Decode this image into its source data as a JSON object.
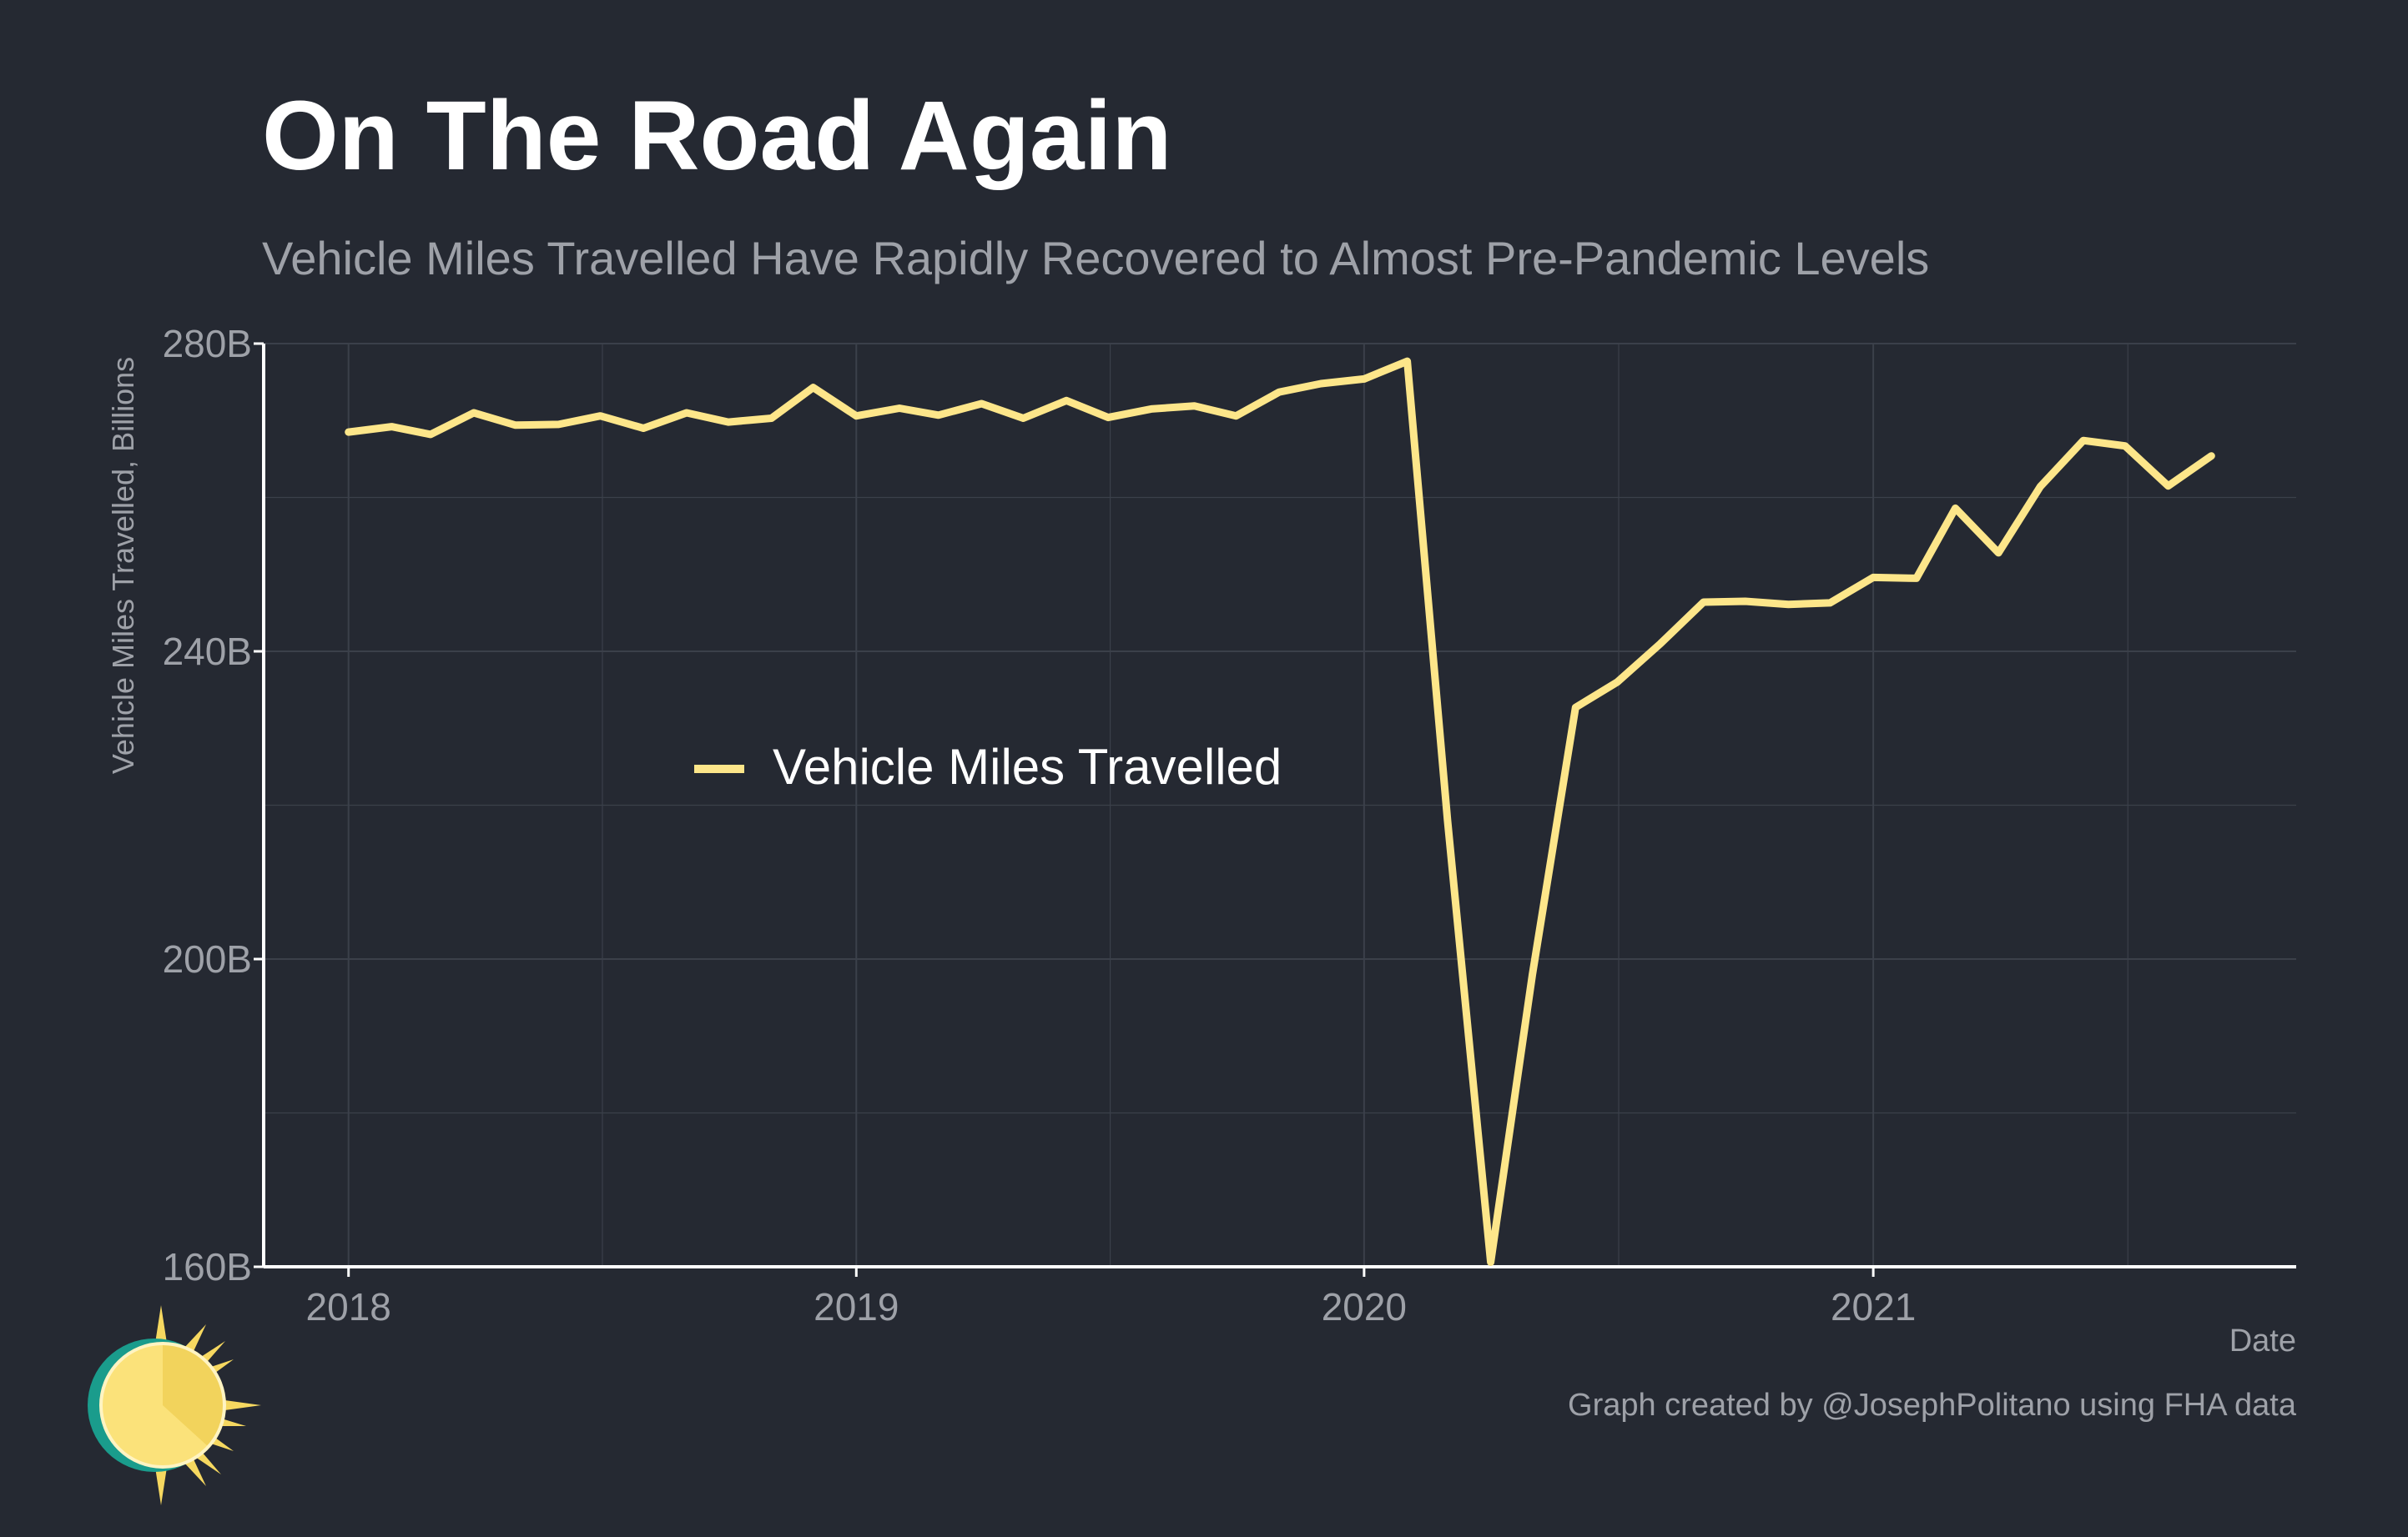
{
  "title": "On The Road Again",
  "subtitle": "Vehicle Miles Travelled Have Rapidly Recovered to Almost Pre-Pandemic Levels",
  "credit": "Graph created by @JosephPolitano using FHA data",
  "colors": {
    "background": "#252932",
    "line": "#fde68a",
    "grid": "#3b404a",
    "axis": "#ffffff",
    "text_muted": "#9ea1a8"
  },
  "chart_data": {
    "type": "line",
    "title": "On The Road Again",
    "subtitle": "Vehicle Miles Travelled Have Rapidly Recovered to Almost Pre-Pandemic Levels",
    "xlabel": "Date",
    "ylabel": "Vehicle Miles Travelled, Billions",
    "xlim": [
      "2017-11-01",
      "2021-11-01"
    ],
    "ylim": [
      160,
      280
    ],
    "y_ticks": [
      160,
      200,
      240,
      280
    ],
    "y_tick_labels": [
      "160B",
      "200B",
      "240B",
      "280B"
    ],
    "x_ticks": [
      "2018-01-01",
      "2019-01-01",
      "2020-01-01",
      "2021-01-01"
    ],
    "x_tick_labels": [
      "2018",
      "2019",
      "2020",
      "2021"
    ],
    "grid": true,
    "legend": "center-left",
    "series": [
      {
        "name": "Vehicle Miles Travelled",
        "color": "#fde68a",
        "x": [
          "2018-01",
          "2018-02",
          "2018-03",
          "2018-04",
          "2018-05",
          "2018-06",
          "2018-07",
          "2018-08",
          "2018-09",
          "2018-10",
          "2018-11",
          "2018-12",
          "2019-01",
          "2019-02",
          "2019-03",
          "2019-04",
          "2019-05",
          "2019-06",
          "2019-07",
          "2019-08",
          "2019-09",
          "2019-10",
          "2019-11",
          "2019-12",
          "2020-01",
          "2020-02",
          "2020-03",
          "2020-04",
          "2020-05",
          "2020-06",
          "2020-07",
          "2020-08",
          "2020-09",
          "2020-10",
          "2020-11",
          "2020-12",
          "2021-01",
          "2021-02",
          "2021-03",
          "2021-04",
          "2021-05",
          "2021-06",
          "2021-07",
          "2021-08",
          "2021-09"
        ],
        "values": [
          268.5,
          269.2,
          268.2,
          271.0,
          269.4,
          269.5,
          270.6,
          269.0,
          271.0,
          269.8,
          270.3,
          274.3,
          270.6,
          271.6,
          270.7,
          272.2,
          270.3,
          272.6,
          270.4,
          271.5,
          271.9,
          270.6,
          273.7,
          274.8,
          275.4,
          277.7,
          218.0,
          160.6,
          198.0,
          232.7,
          236.0,
          241.0,
          246.4,
          246.5,
          246.1,
          246.3,
          249.6,
          249.5,
          258.6,
          252.8,
          261.4,
          267.4,
          266.7,
          261.5,
          265.4
        ]
      }
    ]
  }
}
